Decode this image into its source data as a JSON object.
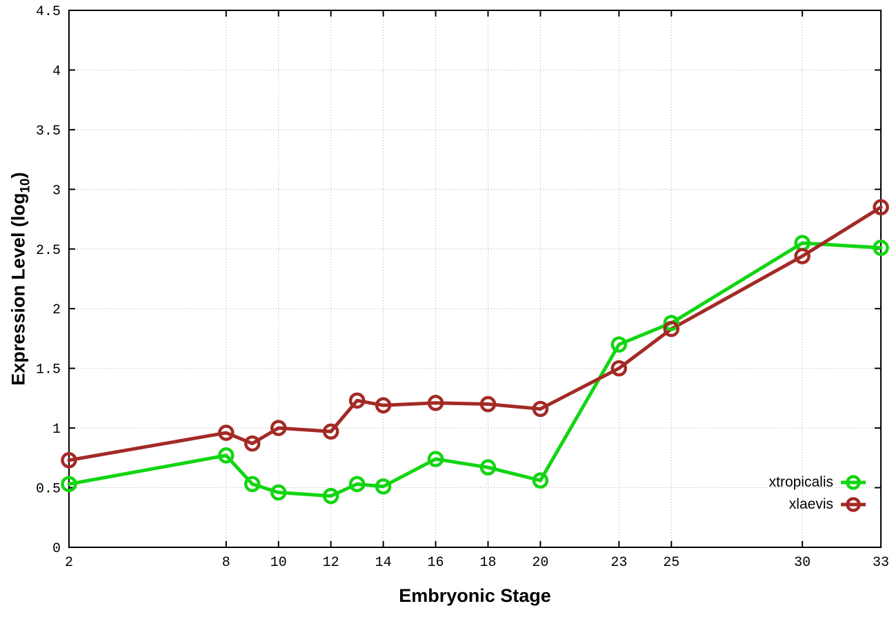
{
  "chart_data": {
    "type": "line",
    "x": [
      2,
      8,
      9,
      10,
      12,
      13,
      14,
      16,
      18,
      20,
      23,
      25,
      30,
      33
    ],
    "series": [
      {
        "name": "xtropicalis",
        "color": "#12d512",
        "values": [
          0.53,
          0.77,
          0.53,
          0.46,
          0.43,
          0.53,
          0.51,
          0.74,
          0.67,
          0.56,
          1.7,
          1.88,
          2.55,
          2.51
        ]
      },
      {
        "name": "xlaevis",
        "color": "#a32a25",
        "values": [
          0.73,
          0.96,
          0.87,
          1.0,
          0.97,
          1.23,
          1.19,
          1.21,
          1.2,
          1.16,
          1.5,
          1.83,
          2.44,
          2.85
        ]
      }
    ],
    "xlabel": "Embryonic Stage",
    "ylabel_prefix": "Expression Level (log",
    "ylabel_sub": "10",
    "ylabel_suffix": ")",
    "xlim": [
      2,
      33
    ],
    "ylim": [
      0,
      4.5
    ],
    "xticks": [
      2,
      8,
      10,
      12,
      14,
      16,
      18,
      20,
      23,
      25,
      30,
      33
    ],
    "yticks": [
      0,
      0.5,
      1,
      1.5,
      2,
      2.5,
      3,
      3.5,
      4,
      4.5
    ],
    "grid": true,
    "legend_position": "bottom-right",
    "axis_color": "#000000",
    "grid_color": "#a8a8a8",
    "tick_label_color": "#000000",
    "background": "#ffffff"
  }
}
